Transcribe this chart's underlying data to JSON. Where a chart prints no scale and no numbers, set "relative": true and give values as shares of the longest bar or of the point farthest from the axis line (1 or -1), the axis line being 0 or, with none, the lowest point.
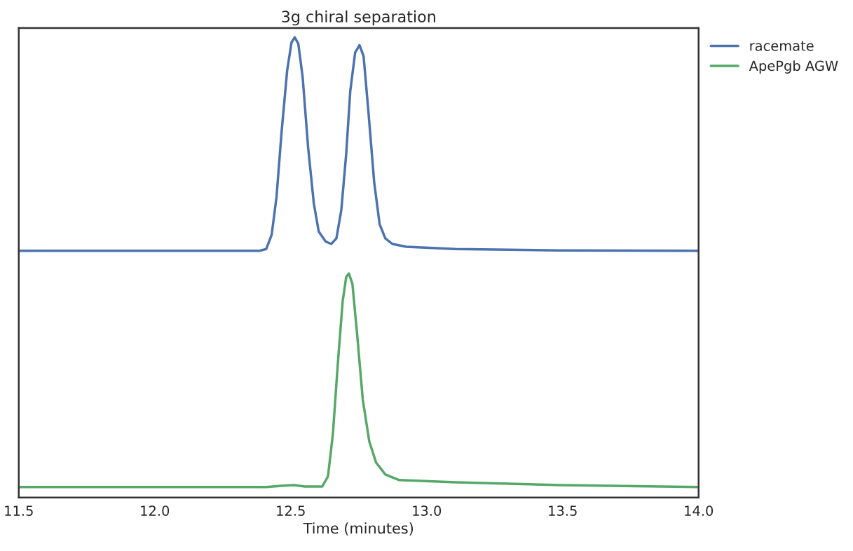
{
  "chart_data": {
    "type": "line",
    "title": "3g chiral separation",
    "xlabel": "Time (minutes)",
    "relative": true,
    "xlim": [
      11.5,
      14.0
    ],
    "xticks": [
      11.5,
      {
        "value": 12,
        "label": "12.0"
      },
      12.5,
      {
        "value": 13,
        "label": "13.0"
      },
      13.5,
      {
        "value": 14,
        "label": "14.0"
      }
    ],
    "grid": false,
    "legend": "top right",
    "tick_labels": "x",
    "series": [
      {
        "name": "racemate",
        "color": "#4c72b0",
        "x": [
          11.5,
          12.384,
          12.41,
          12.43,
          12.448,
          12.466,
          12.487,
          12.503,
          12.515,
          12.528,
          12.544,
          12.564,
          12.585,
          12.603,
          12.629,
          12.649,
          12.668,
          12.686,
          12.704,
          12.719,
          12.737,
          12.753,
          12.768,
          12.786,
          12.807,
          12.827,
          12.848,
          12.874,
          12.925,
          13.106,
          13.492,
          14.0
        ],
        "values": [
          0.536,
          0.536,
          0.54,
          0.571,
          0.654,
          0.791,
          0.928,
          0.989,
          1,
          0.986,
          0.913,
          0.761,
          0.639,
          0.578,
          0.556,
          0.551,
          0.563,
          0.624,
          0.746,
          0.883,
          0.967,
          0.983,
          0.959,
          0.837,
          0.685,
          0.594,
          0.563,
          0.551,
          0.545,
          0.54,
          0.537,
          0.536
        ]
      },
      {
        "name": "ApePgb AGW",
        "color": "#55a868",
        "x": [
          11.5,
          12.41,
          12.474,
          12.513,
          12.552,
          12.616,
          12.637,
          12.655,
          12.673,
          12.691,
          12.704,
          12.714,
          12.727,
          12.745,
          12.765,
          12.789,
          12.814,
          12.848,
          12.899,
          13.106,
          13.492,
          14.0
        ],
        "values": [
          0.023,
          0.023,
          0.026,
          0.027,
          0.024,
          0.024,
          0.046,
          0.137,
          0.289,
          0.426,
          0.479,
          0.487,
          0.464,
          0.35,
          0.213,
          0.122,
          0.076,
          0.05,
          0.038,
          0.033,
          0.027,
          0.023
        ]
      }
    ]
  }
}
